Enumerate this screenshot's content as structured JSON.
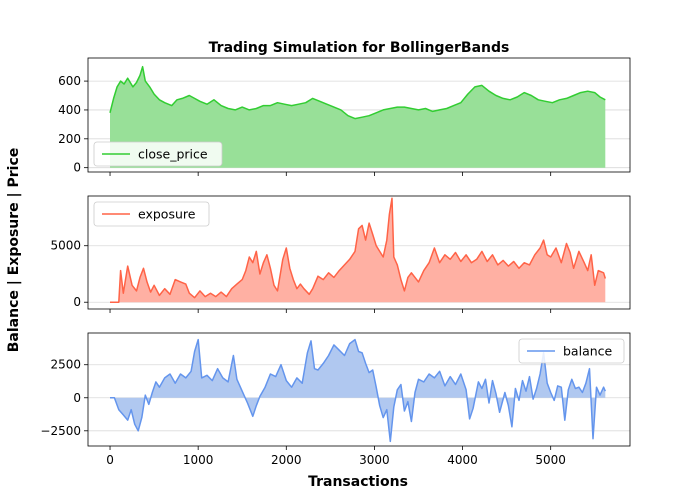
{
  "figure": {
    "title": "Trading Simulation for BollingerBands",
    "ylabel": "Balance | Exposure | Price",
    "xlabel": "Transactions"
  },
  "chart_data": [
    {
      "type": "area",
      "series": [
        {
          "name": "close_price",
          "color": "#32cd32",
          "fill": "#98e098"
        }
      ],
      "xlim": [
        -250,
        5900
      ],
      "ylim": [
        -30,
        760
      ],
      "yticks": [
        0,
        200,
        400,
        600
      ],
      "xtick_labels_shown": false,
      "grid": "y",
      "legend": "lower-left",
      "points": [
        [
          0,
          380
        ],
        [
          40,
          480
        ],
        [
          80,
          560
        ],
        [
          120,
          600
        ],
        [
          160,
          580
        ],
        [
          200,
          620
        ],
        [
          260,
          560
        ],
        [
          300,
          590
        ],
        [
          340,
          640
        ],
        [
          370,
          700
        ],
        [
          400,
          600
        ],
        [
          450,
          560
        ],
        [
          500,
          510
        ],
        [
          560,
          470
        ],
        [
          620,
          450
        ],
        [
          700,
          430
        ],
        [
          760,
          470
        ],
        [
          820,
          480
        ],
        [
          900,
          500
        ],
        [
          960,
          480
        ],
        [
          1020,
          460
        ],
        [
          1100,
          440
        ],
        [
          1180,
          470
        ],
        [
          1260,
          430
        ],
        [
          1340,
          410
        ],
        [
          1420,
          400
        ],
        [
          1500,
          420
        ],
        [
          1580,
          400
        ],
        [
          1660,
          410
        ],
        [
          1740,
          430
        ],
        [
          1820,
          430
        ],
        [
          1900,
          450
        ],
        [
          1980,
          440
        ],
        [
          2060,
          430
        ],
        [
          2140,
          440
        ],
        [
          2220,
          450
        ],
        [
          2300,
          480
        ],
        [
          2380,
          460
        ],
        [
          2460,
          440
        ],
        [
          2540,
          420
        ],
        [
          2620,
          400
        ],
        [
          2700,
          360
        ],
        [
          2780,
          340
        ],
        [
          2860,
          350
        ],
        [
          2940,
          360
        ],
        [
          3020,
          380
        ],
        [
          3100,
          400
        ],
        [
          3180,
          410
        ],
        [
          3260,
          420
        ],
        [
          3340,
          420
        ],
        [
          3420,
          410
        ],
        [
          3500,
          400
        ],
        [
          3580,
          410
        ],
        [
          3660,
          390
        ],
        [
          3740,
          400
        ],
        [
          3820,
          410
        ],
        [
          3900,
          430
        ],
        [
          3980,
          450
        ],
        [
          4060,
          510
        ],
        [
          4140,
          560
        ],
        [
          4220,
          570
        ],
        [
          4300,
          530
        ],
        [
          4380,
          500
        ],
        [
          4460,
          480
        ],
        [
          4540,
          470
        ],
        [
          4620,
          490
        ],
        [
          4700,
          520
        ],
        [
          4780,
          500
        ],
        [
          4860,
          470
        ],
        [
          4940,
          460
        ],
        [
          5020,
          450
        ],
        [
          5100,
          470
        ],
        [
          5180,
          480
        ],
        [
          5260,
          500
        ],
        [
          5340,
          520
        ],
        [
          5420,
          530
        ],
        [
          5500,
          520
        ],
        [
          5560,
          490
        ],
        [
          5620,
          470
        ]
      ]
    },
    {
      "type": "area",
      "series": [
        {
          "name": "exposure",
          "color": "#ff6347",
          "fill": "#ffb0a3"
        }
      ],
      "xlim": [
        -250,
        5900
      ],
      "ylim": [
        -600,
        9400
      ],
      "yticks": [
        0,
        5000
      ],
      "xtick_labels_shown": false,
      "grid": "y",
      "legend": "top-left",
      "points": [
        [
          0,
          0
        ],
        [
          100,
          0
        ],
        [
          120,
          2800
        ],
        [
          150,
          800
        ],
        [
          200,
          3200
        ],
        [
          250,
          1500
        ],
        [
          300,
          1000
        ],
        [
          340,
          2200
        ],
        [
          380,
          3000
        ],
        [
          420,
          1800
        ],
        [
          460,
          900
        ],
        [
          500,
          1500
        ],
        [
          560,
          600
        ],
        [
          620,
          1200
        ],
        [
          680,
          700
        ],
        [
          740,
          2000
        ],
        [
          800,
          1800
        ],
        [
          860,
          1600
        ],
        [
          900,
          800
        ],
        [
          960,
          400
        ],
        [
          1020,
          1000
        ],
        [
          1080,
          500
        ],
        [
          1140,
          800
        ],
        [
          1200,
          500
        ],
        [
          1260,
          900
        ],
        [
          1320,
          500
        ],
        [
          1380,
          1200
        ],
        [
          1440,
          1600
        ],
        [
          1500,
          2000
        ],
        [
          1540,
          2800
        ],
        [
          1580,
          4000
        ],
        [
          1620,
          3500
        ],
        [
          1660,
          4500
        ],
        [
          1700,
          2500
        ],
        [
          1740,
          3500
        ],
        [
          1780,
          4200
        ],
        [
          1820,
          3000
        ],
        [
          1860,
          1500
        ],
        [
          1900,
          1000
        ],
        [
          1960,
          3800
        ],
        [
          2000,
          4800
        ],
        [
          2040,
          3000
        ],
        [
          2080,
          2000
        ],
        [
          2120,
          1200
        ],
        [
          2160,
          1600
        ],
        [
          2200,
          1200
        ],
        [
          2260,
          700
        ],
        [
          2300,
          1200
        ],
        [
          2360,
          2300
        ],
        [
          2420,
          2000
        ],
        [
          2480,
          2600
        ],
        [
          2540,
          2200
        ],
        [
          2600,
          2800
        ],
        [
          2660,
          3300
        ],
        [
          2720,
          3800
        ],
        [
          2780,
          4500
        ],
        [
          2820,
          6500
        ],
        [
          2860,
          6800
        ],
        [
          2900,
          5500
        ],
        [
          2940,
          7000
        ],
        [
          2980,
          6000
        ],
        [
          3020,
          5000
        ],
        [
          3060,
          4500
        ],
        [
          3100,
          4000
        ],
        [
          3140,
          5500
        ],
        [
          3170,
          7800
        ],
        [
          3200,
          9200
        ],
        [
          3220,
          4000
        ],
        [
          3260,
          3300
        ],
        [
          3300,
          2000
        ],
        [
          3340,
          1000
        ],
        [
          3380,
          2200
        ],
        [
          3420,
          2600
        ],
        [
          3460,
          2200
        ],
        [
          3500,
          1800
        ],
        [
          3560,
          2800
        ],
        [
          3620,
          3500
        ],
        [
          3680,
          4800
        ],
        [
          3740,
          3500
        ],
        [
          3800,
          4200
        ],
        [
          3860,
          3800
        ],
        [
          3920,
          4400
        ],
        [
          3980,
          3600
        ],
        [
          4040,
          4200
        ],
        [
          4100,
          3500
        ],
        [
          4160,
          3800
        ],
        [
          4220,
          4500
        ],
        [
          4280,
          3600
        ],
        [
          4340,
          4200
        ],
        [
          4400,
          3300
        ],
        [
          4460,
          3700
        ],
        [
          4520,
          3200
        ],
        [
          4580,
          3600
        ],
        [
          4640,
          3000
        ],
        [
          4700,
          3500
        ],
        [
          4760,
          3300
        ],
        [
          4820,
          4200
        ],
        [
          4880,
          4800
        ],
        [
          4920,
          5500
        ],
        [
          4960,
          4200
        ],
        [
          5000,
          4000
        ],
        [
          5060,
          4800
        ],
        [
          5120,
          3500
        ],
        [
          5180,
          5200
        ],
        [
          5220,
          4400
        ],
        [
          5260,
          3000
        ],
        [
          5320,
          4500
        ],
        [
          5380,
          3500
        ],
        [
          5420,
          2800
        ],
        [
          5460,
          4200
        ],
        [
          5500,
          1500
        ],
        [
          5540,
          2800
        ],
        [
          5600,
          2600
        ],
        [
          5620,
          2100
        ]
      ]
    },
    {
      "type": "area",
      "series": [
        {
          "name": "balance",
          "color": "#6495ed",
          "fill": "#b0c8f0"
        }
      ],
      "xlim": [
        -250,
        5900
      ],
      "ylim": [
        -3650,
        4900
      ],
      "yticks": [
        -2500,
        0,
        2500
      ],
      "xtick_labels": [
        0,
        1000,
        2000,
        3000,
        4000,
        5000
      ],
      "grid": "y",
      "legend": "top-right",
      "points": [
        [
          0,
          0
        ],
        [
          50,
          0
        ],
        [
          100,
          -900
        ],
        [
          150,
          -1300
        ],
        [
          200,
          -1700
        ],
        [
          240,
          -900
        ],
        [
          280,
          -2000
        ],
        [
          320,
          -2500
        ],
        [
          360,
          -1500
        ],
        [
          400,
          200
        ],
        [
          440,
          -500
        ],
        [
          480,
          400
        ],
        [
          520,
          1200
        ],
        [
          560,
          800
        ],
        [
          620,
          1500
        ],
        [
          680,
          1800
        ],
        [
          740,
          1100
        ],
        [
          800,
          1800
        ],
        [
          860,
          1500
        ],
        [
          920,
          2000
        ],
        [
          960,
          3500
        ],
        [
          1000,
          4400
        ],
        [
          1040,
          1500
        ],
        [
          1100,
          1700
        ],
        [
          1160,
          1300
        ],
        [
          1220,
          2200
        ],
        [
          1280,
          1500
        ],
        [
          1340,
          1200
        ],
        [
          1400,
          3200
        ],
        [
          1440,
          1400
        ],
        [
          1500,
          500
        ],
        [
          1560,
          -400
        ],
        [
          1620,
          -1400
        ],
        [
          1660,
          -600
        ],
        [
          1700,
          100
        ],
        [
          1760,
          800
        ],
        [
          1820,
          1800
        ],
        [
          1880,
          1600
        ],
        [
          1940,
          2500
        ],
        [
          2000,
          1300
        ],
        [
          2060,
          800
        ],
        [
          2120,
          1500
        ],
        [
          2180,
          1100
        ],
        [
          2240,
          3400
        ],
        [
          2280,
          4300
        ],
        [
          2320,
          2200
        ],
        [
          2360,
          2100
        ],
        [
          2420,
          2600
        ],
        [
          2480,
          3200
        ],
        [
          2540,
          4000
        ],
        [
          2600,
          3600
        ],
        [
          2660,
          3200
        ],
        [
          2720,
          4100
        ],
        [
          2780,
          4400
        ],
        [
          2820,
          3500
        ],
        [
          2860,
          3400
        ],
        [
          2900,
          2600
        ],
        [
          2940,
          1900
        ],
        [
          2980,
          2100
        ],
        [
          3020,
          800
        ],
        [
          3060,
          -600
        ],
        [
          3100,
          -1500
        ],
        [
          3140,
          -900
        ],
        [
          3180,
          -3300
        ],
        [
          3220,
          -700
        ],
        [
          3260,
          600
        ],
        [
          3300,
          1000
        ],
        [
          3340,
          -1000
        ],
        [
          3380,
          -300
        ],
        [
          3420,
          -1800
        ],
        [
          3460,
          400
        ],
        [
          3500,
          1400
        ],
        [
          3560,
          1200
        ],
        [
          3620,
          1800
        ],
        [
          3680,
          1500
        ],
        [
          3740,
          2000
        ],
        [
          3800,
          900
        ],
        [
          3860,
          1600
        ],
        [
          3920,
          1000
        ],
        [
          3980,
          1800
        ],
        [
          4040,
          600
        ],
        [
          4080,
          -1600
        ],
        [
          4120,
          -800
        ],
        [
          4180,
          1200
        ],
        [
          4220,
          700
        ],
        [
          4260,
          1400
        ],
        [
          4300,
          -400
        ],
        [
          4340,
          1300
        ],
        [
          4380,
          300
        ],
        [
          4420,
          -1100
        ],
        [
          4480,
          400
        ],
        [
          4520,
          -600
        ],
        [
          4560,
          -2200
        ],
        [
          4600,
          700
        ],
        [
          4640,
          -200
        ],
        [
          4680,
          1300
        ],
        [
          4720,
          500
        ],
        [
          4760,
          1600
        ],
        [
          4800,
          -100
        ],
        [
          4840,
          700
        ],
        [
          4880,
          1800
        ],
        [
          4920,
          3400
        ],
        [
          4960,
          1100
        ],
        [
          5000,
          400
        ],
        [
          5040,
          -200
        ],
        [
          5080,
          900
        ],
        [
          5120,
          800
        ],
        [
          5160,
          -1700
        ],
        [
          5200,
          600
        ],
        [
          5240,
          1400
        ],
        [
          5280,
          700
        ],
        [
          5320,
          800
        ],
        [
          5360,
          400
        ],
        [
          5400,
          1100
        ],
        [
          5440,
          2200
        ],
        [
          5480,
          -3100
        ],
        [
          5520,
          800
        ],
        [
          5560,
          200
        ],
        [
          5600,
          800
        ],
        [
          5620,
          500
        ]
      ]
    }
  ]
}
